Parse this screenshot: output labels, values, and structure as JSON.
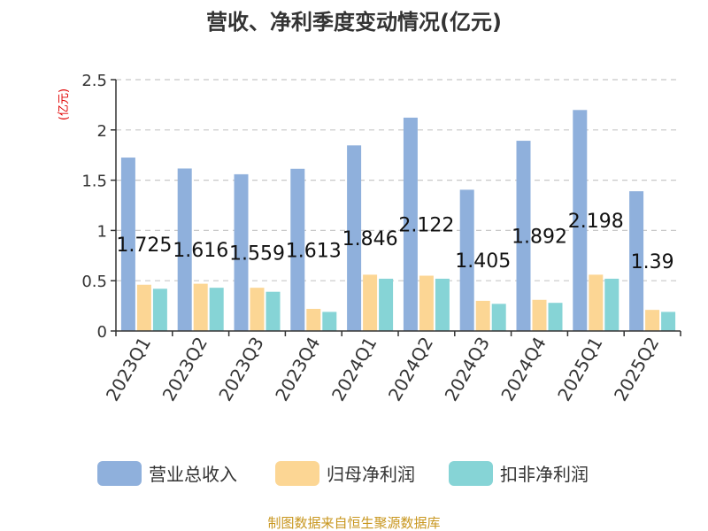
{
  "chart_data": {
    "type": "bar",
    "title": "营收、净利季度变动情况(亿元)",
    "ylabel": "(亿元)",
    "ylim": [
      0,
      2.5
    ],
    "yticks": [
      "0",
      "0.5",
      "1",
      "1.5",
      "2",
      "2.5"
    ],
    "grid": true,
    "legend_position": "bottom",
    "categories": [
      "2023Q1",
      "2023Q2",
      "2023Q3",
      "2023Q4",
      "2024Q1",
      "2024Q2",
      "2024Q3",
      "2024Q4",
      "2025Q1",
      "2025Q2"
    ],
    "series": [
      {
        "name": "营业总收入",
        "color": "#8fb0dc",
        "values": [
          1.725,
          1.616,
          1.559,
          1.613,
          1.846,
          2.122,
          1.405,
          1.892,
          2.198,
          1.39
        ],
        "labels": [
          "1.725",
          "1.616",
          "1.559",
          "1.613",
          "1.846",
          "2.122",
          "1.405",
          "1.892",
          "2.198",
          "1.39"
        ]
      },
      {
        "name": "归母净利润",
        "color": "#fcd694",
        "values": [
          0.46,
          0.47,
          0.43,
          0.22,
          0.56,
          0.55,
          0.3,
          0.31,
          0.56,
          0.21
        ]
      },
      {
        "name": "扣非净利润",
        "color": "#86d4d6",
        "values": [
          0.42,
          0.43,
          0.39,
          0.19,
          0.52,
          0.52,
          0.27,
          0.28,
          0.52,
          0.19
        ]
      }
    ]
  },
  "source": "制图数据来自恒生聚源数据库"
}
